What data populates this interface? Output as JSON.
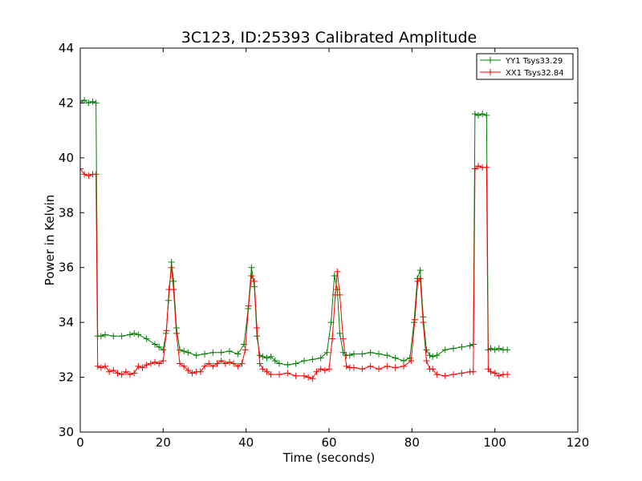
{
  "chart_data": {
    "type": "line",
    "title": "3C123, ID:25393 Calibrated Amplitude",
    "xlabel": "Time (seconds)",
    "ylabel": "Power in Kelvin",
    "xlim": [
      0,
      120
    ],
    "ylim": [
      30,
      44
    ],
    "xticks": [
      "0",
      "20",
      "40",
      "60",
      "80",
      "100",
      "120"
    ],
    "yticks": [
      "30",
      "32",
      "34",
      "36",
      "38",
      "40",
      "42",
      "44"
    ],
    "grid": false,
    "legend_position": "top-right",
    "marker": "+",
    "series": [
      {
        "name": "YY1 Tsys33.29",
        "color": "#008000",
        "x": [
          0,
          1,
          2,
          3,
          3.8,
          4.2,
          5,
          6,
          8,
          10,
          12,
          13,
          14,
          16,
          18,
          19,
          20,
          20.7,
          21.3,
          22,
          22.5,
          23.2,
          24,
          25,
          26,
          28,
          30,
          32,
          34,
          36,
          38,
          39.5,
          40.5,
          41.3,
          42,
          42.6,
          43.3,
          44,
          45,
          46,
          47,
          48,
          50,
          52,
          54,
          56,
          58,
          59.5,
          60.5,
          61.3,
          62,
          62.6,
          63.4,
          64.2,
          65,
          66,
          68,
          70,
          72,
          74,
          76,
          78,
          79.5,
          80.5,
          81.3,
          82,
          82.7,
          83.5,
          84.3,
          85,
          86,
          88,
          90,
          92,
          94,
          94.8,
          95.2,
          96,
          97,
          98,
          98.4,
          99,
          100,
          101,
          102,
          103
        ],
        "y": [
          42.05,
          42.1,
          42.0,
          42.05,
          42.0,
          33.5,
          33.5,
          33.55,
          33.5,
          33.5,
          33.55,
          33.6,
          33.55,
          33.4,
          33.2,
          33.1,
          33.0,
          33.6,
          34.8,
          36.2,
          35.5,
          33.8,
          33.0,
          32.95,
          32.9,
          32.8,
          32.85,
          32.9,
          32.9,
          32.95,
          32.85,
          33.2,
          34.5,
          36.0,
          35.3,
          33.5,
          32.8,
          32.75,
          32.7,
          32.75,
          32.6,
          32.5,
          32.45,
          32.5,
          32.6,
          32.65,
          32.7,
          32.9,
          34.0,
          35.7,
          35.2,
          33.6,
          32.9,
          32.8,
          32.8,
          32.85,
          32.85,
          32.9,
          32.85,
          32.8,
          32.7,
          32.6,
          32.7,
          34.0,
          35.6,
          35.9,
          34.2,
          33.0,
          32.8,
          32.75,
          32.8,
          33.0,
          33.05,
          33.1,
          33.15,
          33.2,
          41.6,
          41.55,
          41.6,
          41.55,
          33.0,
          33.05,
          33.0,
          33.05,
          33.0,
          33.0
        ]
      },
      {
        "name": "XX1 Tsys32.84",
        "color": "#ff0000",
        "x": [
          0,
          1,
          2,
          3,
          3.8,
          4.2,
          5,
          6,
          7,
          8,
          9,
          10,
          11,
          12,
          13,
          14,
          15,
          16,
          17,
          18,
          19,
          20,
          20.8,
          21.4,
          22,
          22.5,
          23.2,
          24,
          25,
          26,
          27,
          28,
          29,
          30,
          31,
          32,
          33,
          34,
          35,
          36,
          37,
          38,
          39,
          39.8,
          40.6,
          41.3,
          42,
          42.6,
          43.3,
          44,
          45,
          46,
          48,
          50,
          52,
          54,
          55,
          56,
          57,
          58,
          59,
          60,
          60.8,
          61.5,
          62,
          62.6,
          63.4,
          64.2,
          65,
          66,
          68,
          70,
          72,
          74,
          76,
          78,
          79.8,
          80.7,
          81.4,
          82,
          82.7,
          83.5,
          84.3,
          85,
          86,
          88,
          90,
          92,
          94,
          94.8,
          95.2,
          96,
          97,
          98,
          98.4,
          99,
          100,
          101,
          102,
          103
        ],
        "y": [
          39.6,
          39.4,
          39.35,
          39.4,
          39.4,
          32.4,
          32.35,
          32.4,
          32.2,
          32.25,
          32.15,
          32.1,
          32.2,
          32.1,
          32.15,
          32.4,
          32.35,
          32.45,
          32.5,
          32.55,
          32.5,
          32.6,
          33.7,
          35.2,
          36.0,
          35.2,
          33.6,
          32.5,
          32.4,
          32.25,
          32.15,
          32.2,
          32.2,
          32.4,
          32.5,
          32.4,
          32.5,
          32.6,
          32.5,
          32.55,
          32.5,
          32.4,
          32.5,
          33.0,
          34.6,
          35.7,
          35.5,
          33.8,
          32.5,
          32.3,
          32.2,
          32.1,
          32.1,
          32.15,
          32.05,
          32.05,
          32.0,
          31.95,
          32.2,
          32.3,
          32.25,
          32.3,
          33.4,
          35.0,
          35.85,
          35.0,
          33.4,
          32.4,
          32.35,
          32.35,
          32.3,
          32.4,
          32.3,
          32.4,
          32.35,
          32.4,
          32.6,
          34.1,
          35.5,
          35.6,
          34.0,
          32.6,
          32.3,
          32.3,
          32.1,
          32.05,
          32.1,
          32.15,
          32.2,
          32.2,
          39.6,
          39.7,
          39.65,
          39.65,
          32.3,
          32.2,
          32.15,
          32.05,
          32.1,
          32.1
        ]
      }
    ]
  }
}
